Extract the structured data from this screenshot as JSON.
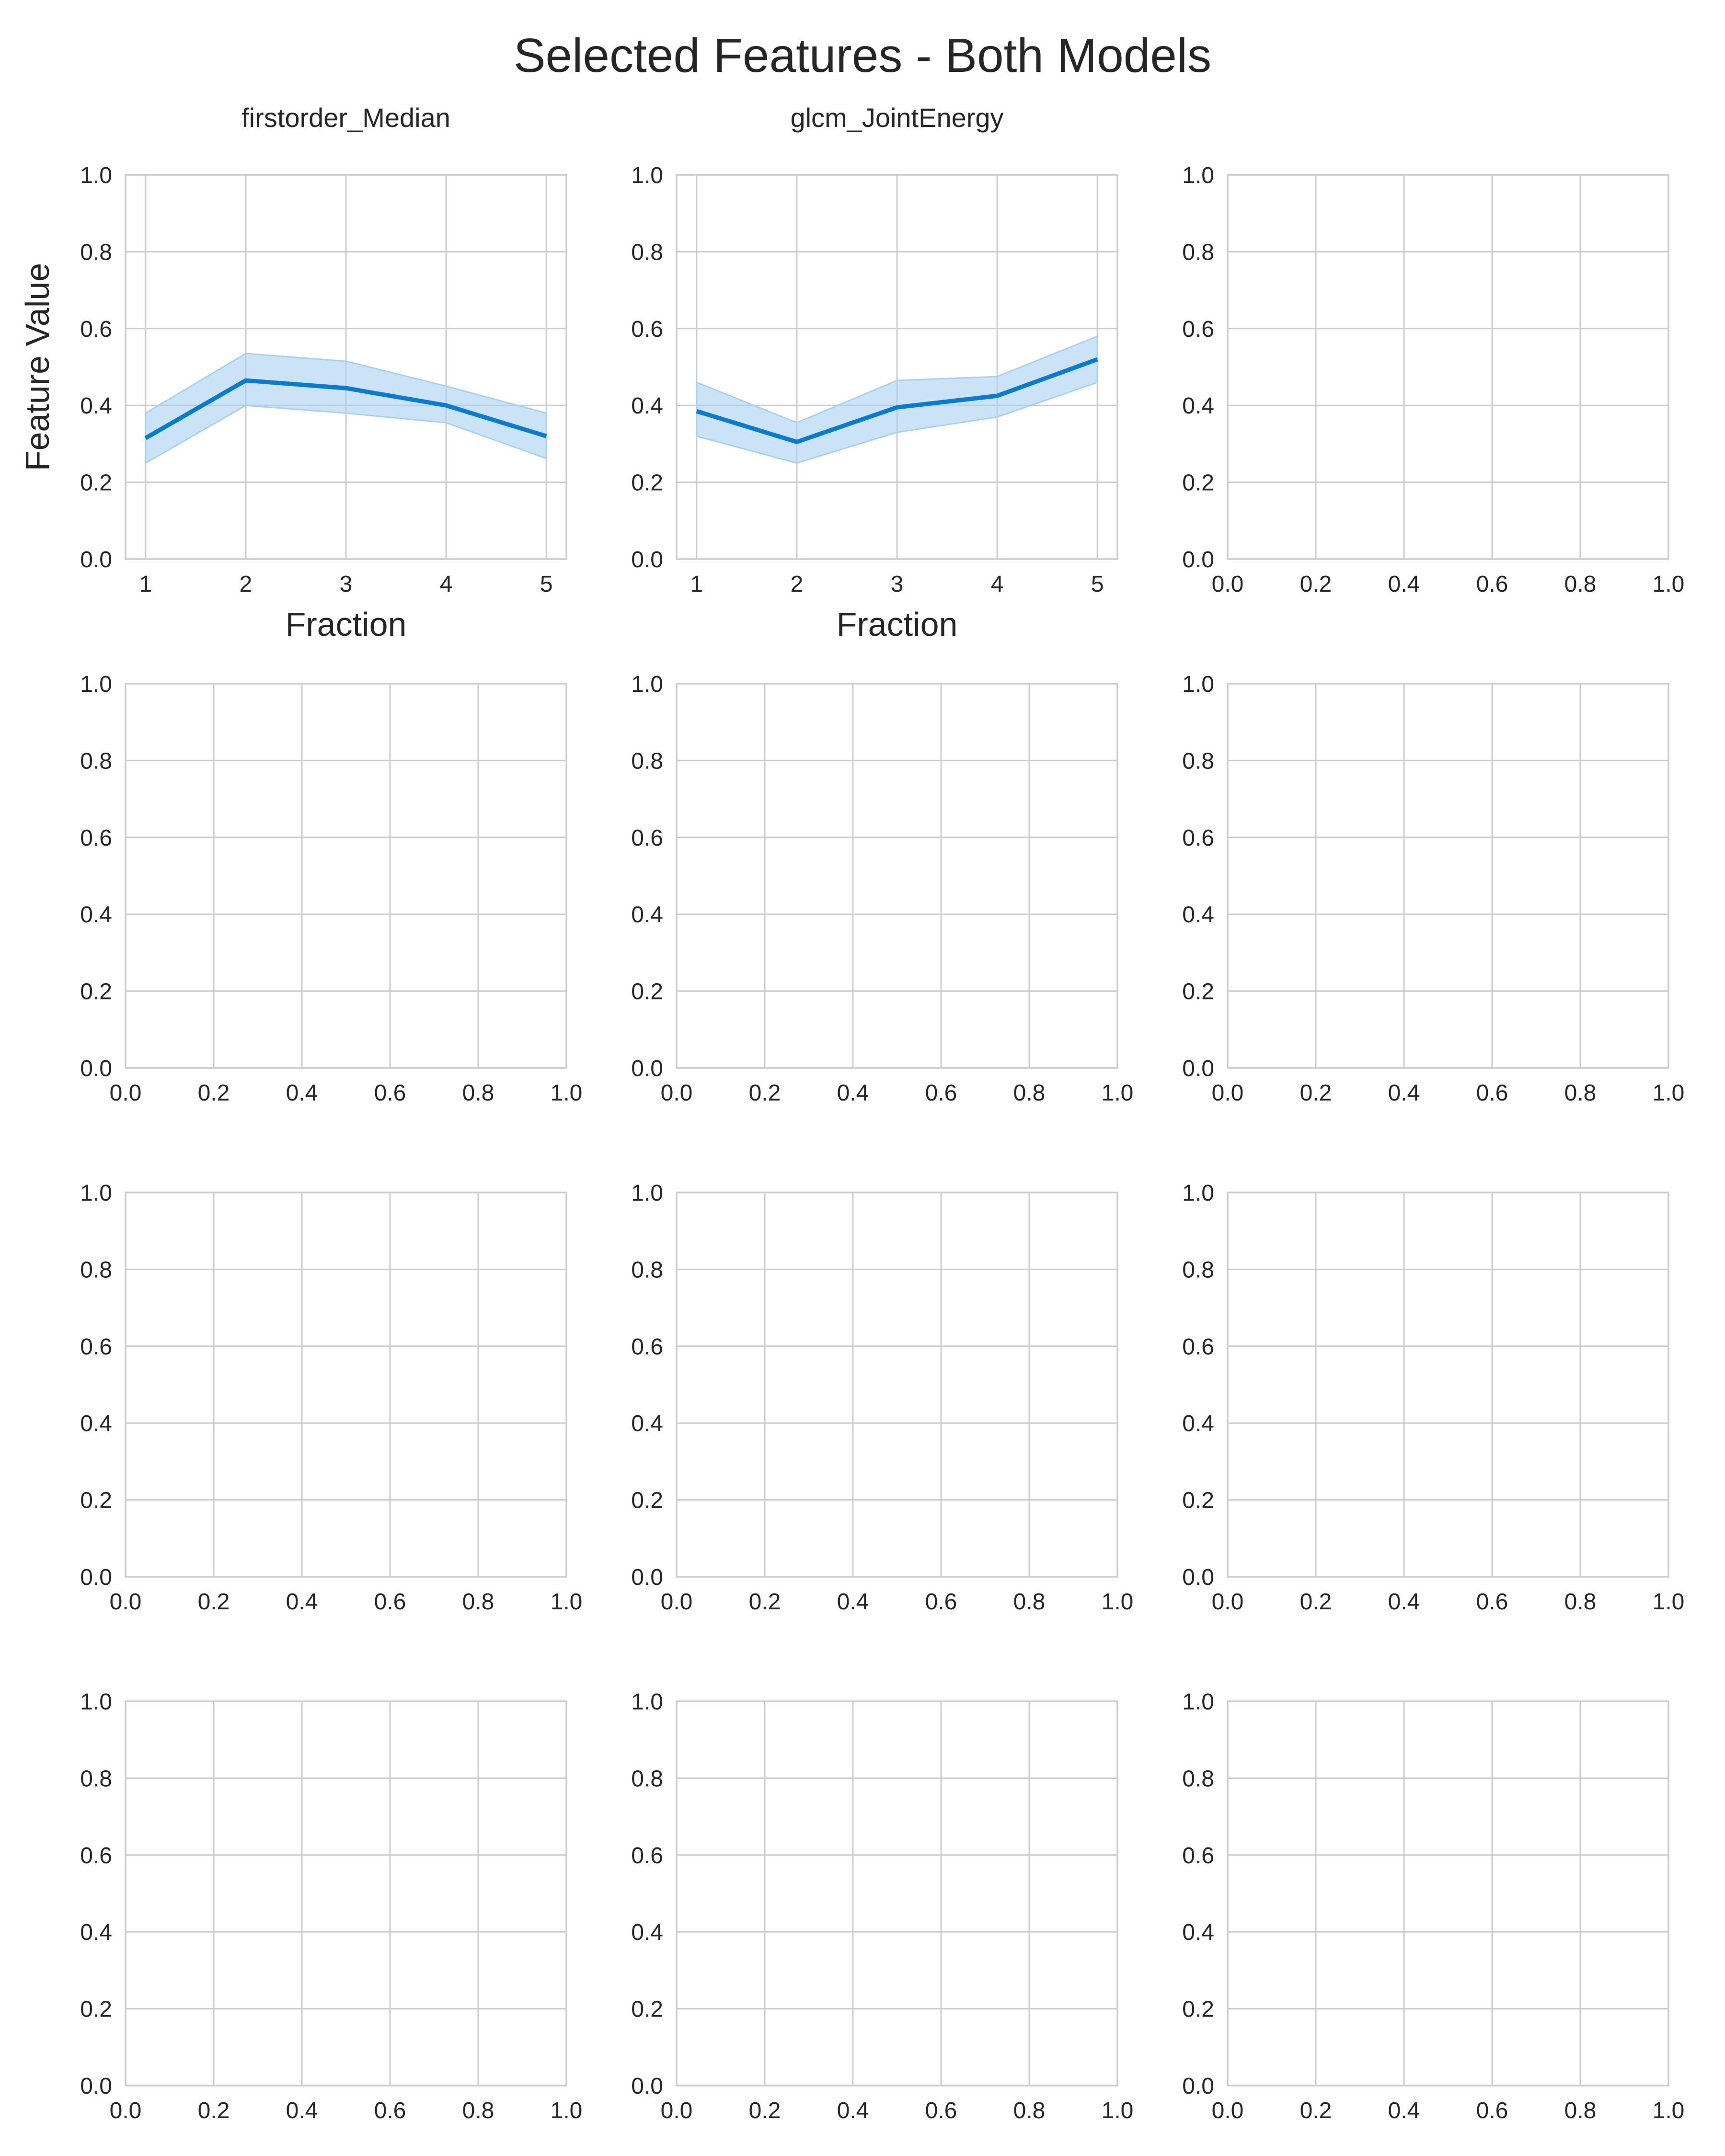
{
  "figure": {
    "title": "Selected Features - Both Models"
  },
  "chart_data": [
    {
      "type": "line",
      "title": "firstorder_Median",
      "xlabel": "Fraction",
      "ylabel": "Feature Value",
      "x": [
        1,
        2,
        3,
        4,
        5
      ],
      "xlim": [
        0.8,
        5.2
      ],
      "ylim": [
        0,
        1
      ],
      "xticks": [
        "1",
        "2",
        "3",
        "4",
        "5"
      ],
      "yticks": [
        "0.0",
        "0.2",
        "0.4",
        "0.6",
        "0.8",
        "1.0"
      ],
      "grid": true,
      "series": [
        {
          "values": [
            0.315,
            0.465,
            0.445,
            0.4,
            0.32
          ],
          "ci_low": [
            0.25,
            0.4,
            0.38,
            0.355,
            0.262
          ],
          "ci_high": [
            0.38,
            0.535,
            0.515,
            0.45,
            0.38
          ],
          "color": "#0a7bd1",
          "band_color": "#a8d0f0"
        }
      ]
    },
    {
      "type": "line",
      "title": "glcm_JointEnergy",
      "xlabel": "Fraction",
      "ylabel": "",
      "x": [
        1,
        2,
        3,
        4,
        5
      ],
      "xlim": [
        0.8,
        5.2
      ],
      "ylim": [
        0,
        1
      ],
      "xticks": [
        "1",
        "2",
        "3",
        "4",
        "5"
      ],
      "yticks": [
        "0.0",
        "0.2",
        "0.4",
        "0.6",
        "0.8",
        "1.0"
      ],
      "grid": true,
      "series": [
        {
          "values": [
            0.385,
            0.305,
            0.395,
            0.425,
            0.52
          ],
          "ci_low": [
            0.32,
            0.25,
            0.33,
            0.37,
            0.46
          ],
          "ci_high": [
            0.46,
            0.355,
            0.465,
            0.475,
            0.58
          ],
          "color": "#0a7bd1",
          "band_color": "#a8d0f0"
        }
      ]
    },
    {
      "type": "line",
      "empty": true,
      "xlim": [
        0,
        1
      ],
      "ylim": [
        0,
        1
      ],
      "xticks": [
        "0.0",
        "0.2",
        "0.4",
        "0.6",
        "0.8",
        "1.0"
      ],
      "yticks": [
        "0.0",
        "0.2",
        "0.4",
        "0.6",
        "0.8",
        "1.0"
      ],
      "grid": true
    },
    {
      "type": "line",
      "empty": true,
      "xlim": [
        0,
        1
      ],
      "ylim": [
        0,
        1
      ],
      "xticks": [
        "0.0",
        "0.2",
        "0.4",
        "0.6",
        "0.8",
        "1.0"
      ],
      "yticks": [
        "0.0",
        "0.2",
        "0.4",
        "0.6",
        "0.8",
        "1.0"
      ],
      "grid": true
    },
    {
      "type": "line",
      "empty": true,
      "xlim": [
        0,
        1
      ],
      "ylim": [
        0,
        1
      ],
      "xticks": [
        "0.0",
        "0.2",
        "0.4",
        "0.6",
        "0.8",
        "1.0"
      ],
      "yticks": [
        "0.0",
        "0.2",
        "0.4",
        "0.6",
        "0.8",
        "1.0"
      ],
      "grid": true
    },
    {
      "type": "line",
      "empty": true,
      "xlim": [
        0,
        1
      ],
      "ylim": [
        0,
        1
      ],
      "xticks": [
        "0.0",
        "0.2",
        "0.4",
        "0.6",
        "0.8",
        "1.0"
      ],
      "yticks": [
        "0.0",
        "0.2",
        "0.4",
        "0.6",
        "0.8",
        "1.0"
      ],
      "grid": true
    },
    {
      "type": "line",
      "empty": true,
      "xlim": [
        0,
        1
      ],
      "ylim": [
        0,
        1
      ],
      "xticks": [
        "0.0",
        "0.2",
        "0.4",
        "0.6",
        "0.8",
        "1.0"
      ],
      "yticks": [
        "0.0",
        "0.2",
        "0.4",
        "0.6",
        "0.8",
        "1.0"
      ],
      "grid": true
    },
    {
      "type": "line",
      "empty": true,
      "xlim": [
        0,
        1
      ],
      "ylim": [
        0,
        1
      ],
      "xticks": [
        "0.0",
        "0.2",
        "0.4",
        "0.6",
        "0.8",
        "1.0"
      ],
      "yticks": [
        "0.0",
        "0.2",
        "0.4",
        "0.6",
        "0.8",
        "1.0"
      ],
      "grid": true
    },
    {
      "type": "line",
      "empty": true,
      "xlim": [
        0,
        1
      ],
      "ylim": [
        0,
        1
      ],
      "xticks": [
        "0.0",
        "0.2",
        "0.4",
        "0.6",
        "0.8",
        "1.0"
      ],
      "yticks": [
        "0.0",
        "0.2",
        "0.4",
        "0.6",
        "0.8",
        "1.0"
      ],
      "grid": true
    },
    {
      "type": "line",
      "empty": true,
      "xlim": [
        0,
        1
      ],
      "ylim": [
        0,
        1
      ],
      "xticks": [
        "0.0",
        "0.2",
        "0.4",
        "0.6",
        "0.8",
        "1.0"
      ],
      "yticks": [
        "0.0",
        "0.2",
        "0.4",
        "0.6",
        "0.8",
        "1.0"
      ],
      "grid": true
    },
    {
      "type": "line",
      "empty": true,
      "xlim": [
        0,
        1
      ],
      "ylim": [
        0,
        1
      ],
      "xticks": [
        "0.0",
        "0.2",
        "0.4",
        "0.6",
        "0.8",
        "1.0"
      ],
      "yticks": [
        "0.0",
        "0.2",
        "0.4",
        "0.6",
        "0.8",
        "1.0"
      ],
      "grid": true
    },
    {
      "type": "line",
      "empty": true,
      "xlim": [
        0,
        1
      ],
      "ylim": [
        0,
        1
      ],
      "xticks": [
        "0.0",
        "0.2",
        "0.4",
        "0.6",
        "0.8",
        "1.0"
      ],
      "yticks": [
        "0.0",
        "0.2",
        "0.4",
        "0.6",
        "0.8",
        "1.0"
      ],
      "grid": true
    }
  ]
}
